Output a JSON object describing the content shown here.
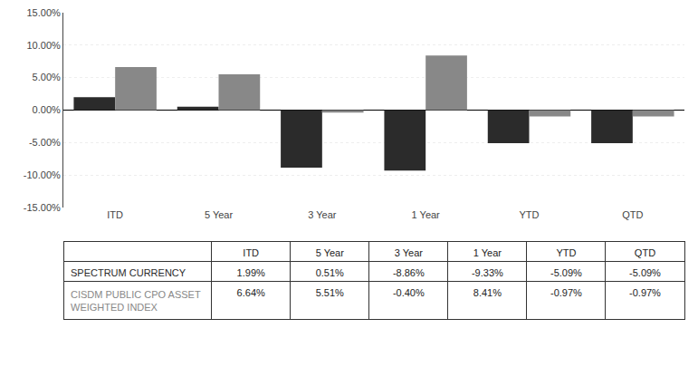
{
  "chart_data": {
    "type": "bar",
    "categories": [
      "ITD",
      "5 Year",
      "3 Year",
      "1 Year",
      "YTD",
      "QTD"
    ],
    "series": [
      {
        "name": "SPECTRUM CURRENCY",
        "color": "#2b2b2b",
        "values": [
          1.99,
          0.51,
          -8.86,
          -9.33,
          -5.09,
          -5.09
        ],
        "value_labels": [
          "1.99%",
          "0.51%",
          "-8.86%",
          "-9.33%",
          "-5.09%",
          "-5.09%"
        ]
      },
      {
        "name": "CISDM PUBLIC CPO ASSET\nWEIGHTED INDEX",
        "color": "#888888",
        "values": [
          6.64,
          5.51,
          -0.4,
          8.41,
          -0.97,
          -0.97
        ],
        "value_labels": [
          "6.64%",
          "5.51%",
          "-0.40%",
          "8.41%",
          "-0.97%",
          "-0.97%"
        ]
      }
    ],
    "ylim": [
      -15.0,
      15.0
    ],
    "yticks": [
      {
        "value": -15.0,
        "label": "-15.00%"
      },
      {
        "value": -10.0,
        "label": "-10.00%"
      },
      {
        "value": -5.0,
        "label": "-5.00%"
      },
      {
        "value": 0.0,
        "label": "0.00%"
      },
      {
        "value": 5.0,
        "label": "5.00%"
      },
      {
        "value": 10.0,
        "label": "10.00%"
      },
      {
        "value": 15.0,
        "label": "15.00%"
      }
    ],
    "grid": true
  }
}
